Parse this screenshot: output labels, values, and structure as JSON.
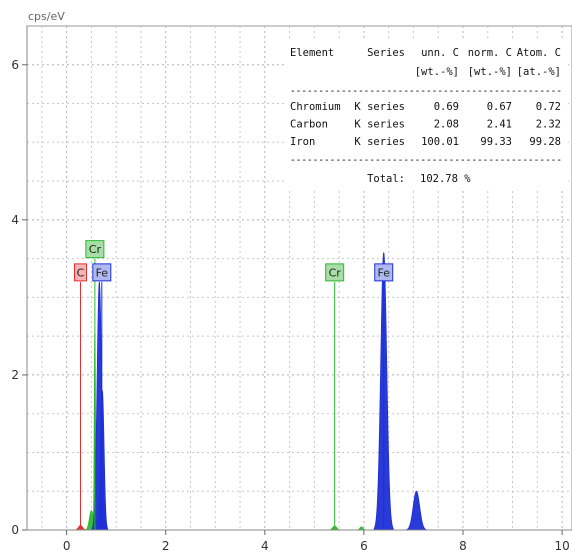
{
  "chart_data": {
    "type": "line",
    "ylabel": "cps/eV",
    "xlabel": "",
    "xlim": [
      -0.8,
      10.2
    ],
    "ylim": [
      0,
      6.5
    ],
    "x_ticks": [
      "0",
      "2",
      "4",
      "6",
      "8",
      "10"
    ],
    "y_ticks": [
      "0",
      "2",
      "4",
      "6"
    ],
    "grid": true,
    "series": [
      {
        "name": "C",
        "color": "#e03030",
        "peaks": [
          {
            "center": 0.28,
            "height": 0.06,
            "width": 0.04
          }
        ]
      },
      {
        "name": "Cr",
        "color": "#2eb82e",
        "peaks": [
          {
            "center": 0.5,
            "height": 0.25,
            "width": 0.04
          },
          {
            "center": 0.57,
            "height": 2.55,
            "width": 0.012
          },
          {
            "center": 5.41,
            "height": 0.05,
            "width": 0.04
          },
          {
            "center": 5.95,
            "height": 0.04,
            "width": 0.03
          }
        ]
      },
      {
        "name": "Fe",
        "color": "#1e2fd6",
        "peaks": [
          {
            "center": 0.66,
            "height": 3.2,
            "width": 0.045
          },
          {
            "center": 0.72,
            "height": 1.8,
            "width": 0.035
          },
          {
            "center": 6.4,
            "height": 3.58,
            "width": 0.06
          },
          {
            "center": 7.06,
            "height": 0.5,
            "width": 0.065
          }
        ]
      }
    ],
    "lines": [
      {
        "label": "C",
        "x": 0.28,
        "top": 3.2,
        "color": "#e03030"
      },
      {
        "label": "Cr",
        "x": 0.57,
        "top": 3.5,
        "color": "#2eb82e"
      },
      {
        "label": "Fe",
        "x": 0.71,
        "top": 3.2,
        "color": "#1e2fd6"
      },
      {
        "label": "Cr",
        "x": 5.41,
        "top": 3.2,
        "color": "#2eb82e"
      },
      {
        "label": "Fe",
        "x": 6.4,
        "top": 3.2,
        "color": "#1e2fd6"
      }
    ],
    "results_table": {
      "headers": [
        "Element",
        "Series",
        "unn. C",
        "norm. C",
        "Atom. C"
      ],
      "units": [
        "",
        "",
        "[wt.-%]",
        "[wt.-%]",
        "[at.-%]"
      ],
      "rows": [
        [
          "Chromium",
          "K series",
          "0.69",
          "0.67",
          "0.72"
        ],
        [
          "Carbon",
          "K series",
          "2.08",
          "2.41",
          "2.32"
        ],
        [
          "Iron",
          "K series",
          "100.01",
          "99.33",
          "99.28"
        ]
      ],
      "separator": "------------------------------------------------",
      "total_label": "Total:",
      "total_value": "102.78 %"
    }
  }
}
